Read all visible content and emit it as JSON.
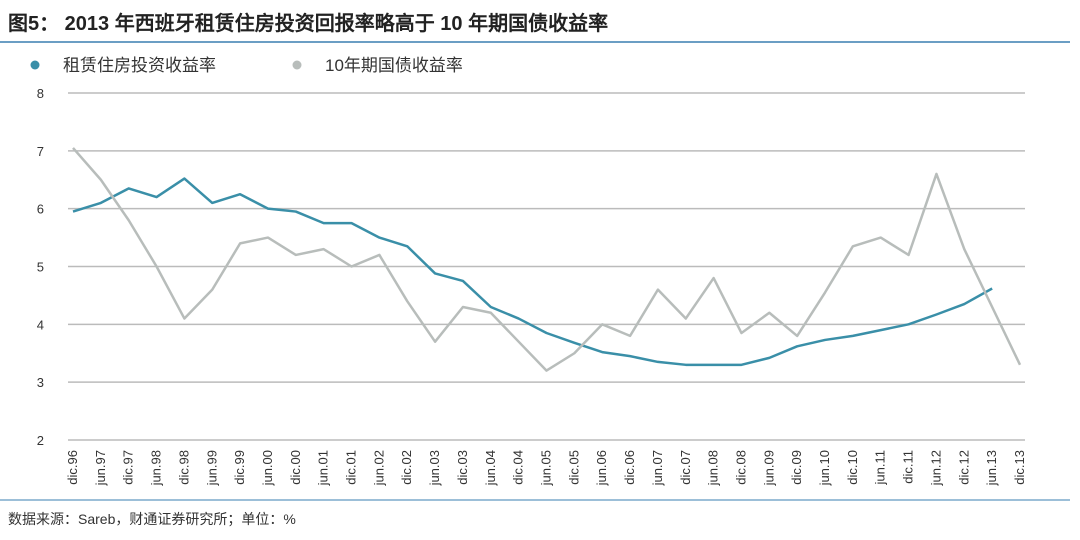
{
  "chart_data": {
    "type": "line",
    "title": "图5： 2013 年西班牙租赁住房投资回报率略高于 10 年期国债收益率",
    "source": "数据来源：Sareb，财通证券研究所；单位：%",
    "categories": [
      "dic.96",
      "jun.97",
      "dic.97",
      "jun.98",
      "dic.98",
      "jun.99",
      "dic.99",
      "jun.00",
      "dic.00",
      "jun.01",
      "dic.01",
      "jun.02",
      "dic.02",
      "jun.03",
      "dic.03",
      "jun.04",
      "dic.04",
      "jun.05",
      "dic.05",
      "jun.06",
      "dic.06",
      "jun.07",
      "dic.07",
      "jun.08",
      "dic.08",
      "jun.09",
      "dic.09",
      "jun.10",
      "dic.10",
      "jun.11",
      "dic.11",
      "jun.12",
      "dic.12",
      "jun.13",
      "dic.13"
    ],
    "series": [
      {
        "name": "租赁住房投资收益率",
        "color": "#3a8fa8",
        "values": [
          5.95,
          6.1,
          6.35,
          6.2,
          6.52,
          6.1,
          6.25,
          6.0,
          5.95,
          5.75,
          5.75,
          5.5,
          5.35,
          4.88,
          4.75,
          4.3,
          4.1,
          3.85,
          3.68,
          3.52,
          3.45,
          3.35,
          3.3,
          3.3,
          3.3,
          3.42,
          3.62,
          3.73,
          3.8,
          3.9,
          4.0,
          4.17,
          4.35,
          4.62,
          null
        ]
      },
      {
        "name": "10年期国债收益率",
        "color": "#b8bdbb",
        "values": [
          7.05,
          6.5,
          5.8,
          5.0,
          4.1,
          4.6,
          5.4,
          5.5,
          5.2,
          5.3,
          5.0,
          5.2,
          4.4,
          3.7,
          4.3,
          4.2,
          3.7,
          3.2,
          3.5,
          4.0,
          3.8,
          4.6,
          4.1,
          4.8,
          3.85,
          4.2,
          3.8,
          4.55,
          5.35,
          5.5,
          5.2,
          6.6,
          5.3,
          4.3,
          3.3
        ]
      }
    ],
    "ylim": [
      2,
      8
    ],
    "yticks": [
      2,
      3,
      4,
      5,
      6,
      7,
      8
    ],
    "grid": true,
    "legend": "top-left"
  }
}
